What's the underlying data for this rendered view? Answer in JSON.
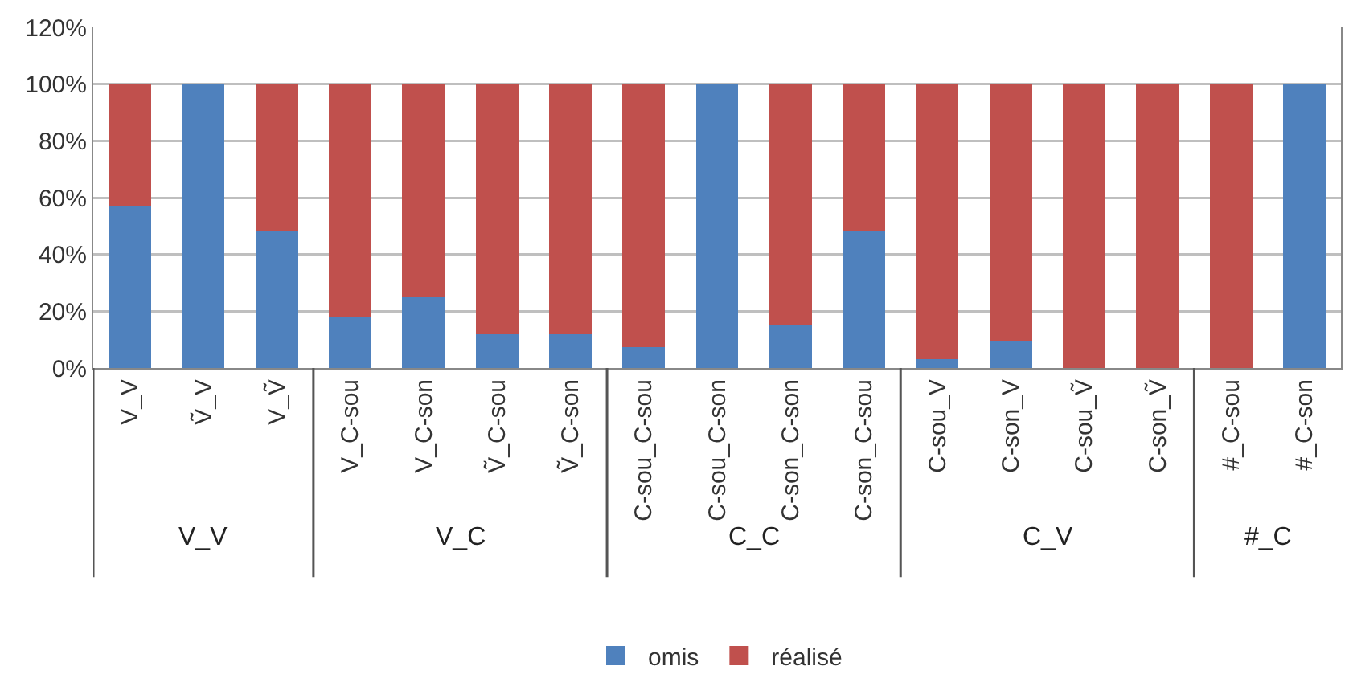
{
  "chart_data": {
    "type": "bar",
    "stacked": true,
    "categories": [
      "V_V",
      "Ṽ_V",
      "V_Ṽ",
      "V_C-sou",
      "V_C-son",
      "Ṽ_C-sou",
      "Ṽ_C-son",
      "C-sou_C-sou",
      "C-sou_C-son",
      "C-son_C-son",
      "C-son_C-sou",
      "C-sou_V",
      "C-son_V",
      "C-sou_Ṽ",
      "C-son_Ṽ",
      "#_C-sou",
      "#_C-son"
    ],
    "series": [
      {
        "name": "omis",
        "color": "#4f81bd",
        "values": [
          57,
          100,
          48.5,
          18,
          25,
          12,
          12,
          7.5,
          100,
          15,
          48.5,
          3,
          9.5,
          0,
          0,
          0,
          100
        ]
      },
      {
        "name": "réalisé",
        "color": "#c0504d",
        "values": [
          43,
          0,
          51.5,
          82,
          75,
          88,
          88,
          92.5,
          0,
          85,
          51.5,
          97,
          90.5,
          100,
          100,
          100,
          0
        ]
      }
    ],
    "ylim": [
      0,
      120
    ],
    "yticks": [
      {
        "value": 0,
        "label": "0%"
      },
      {
        "value": 20,
        "label": "20%"
      },
      {
        "value": 40,
        "label": "40%"
      },
      {
        "value": 60,
        "label": "60%"
      },
      {
        "value": 80,
        "label": "80%"
      },
      {
        "value": 100,
        "label": "100%"
      },
      {
        "value": 120,
        "label": "120%"
      }
    ],
    "grid": "y",
    "legend": "bottom",
    "annotations": [
      "V_V",
      "V_C",
      "C_C",
      "C_V",
      "#_C"
    ]
  }
}
